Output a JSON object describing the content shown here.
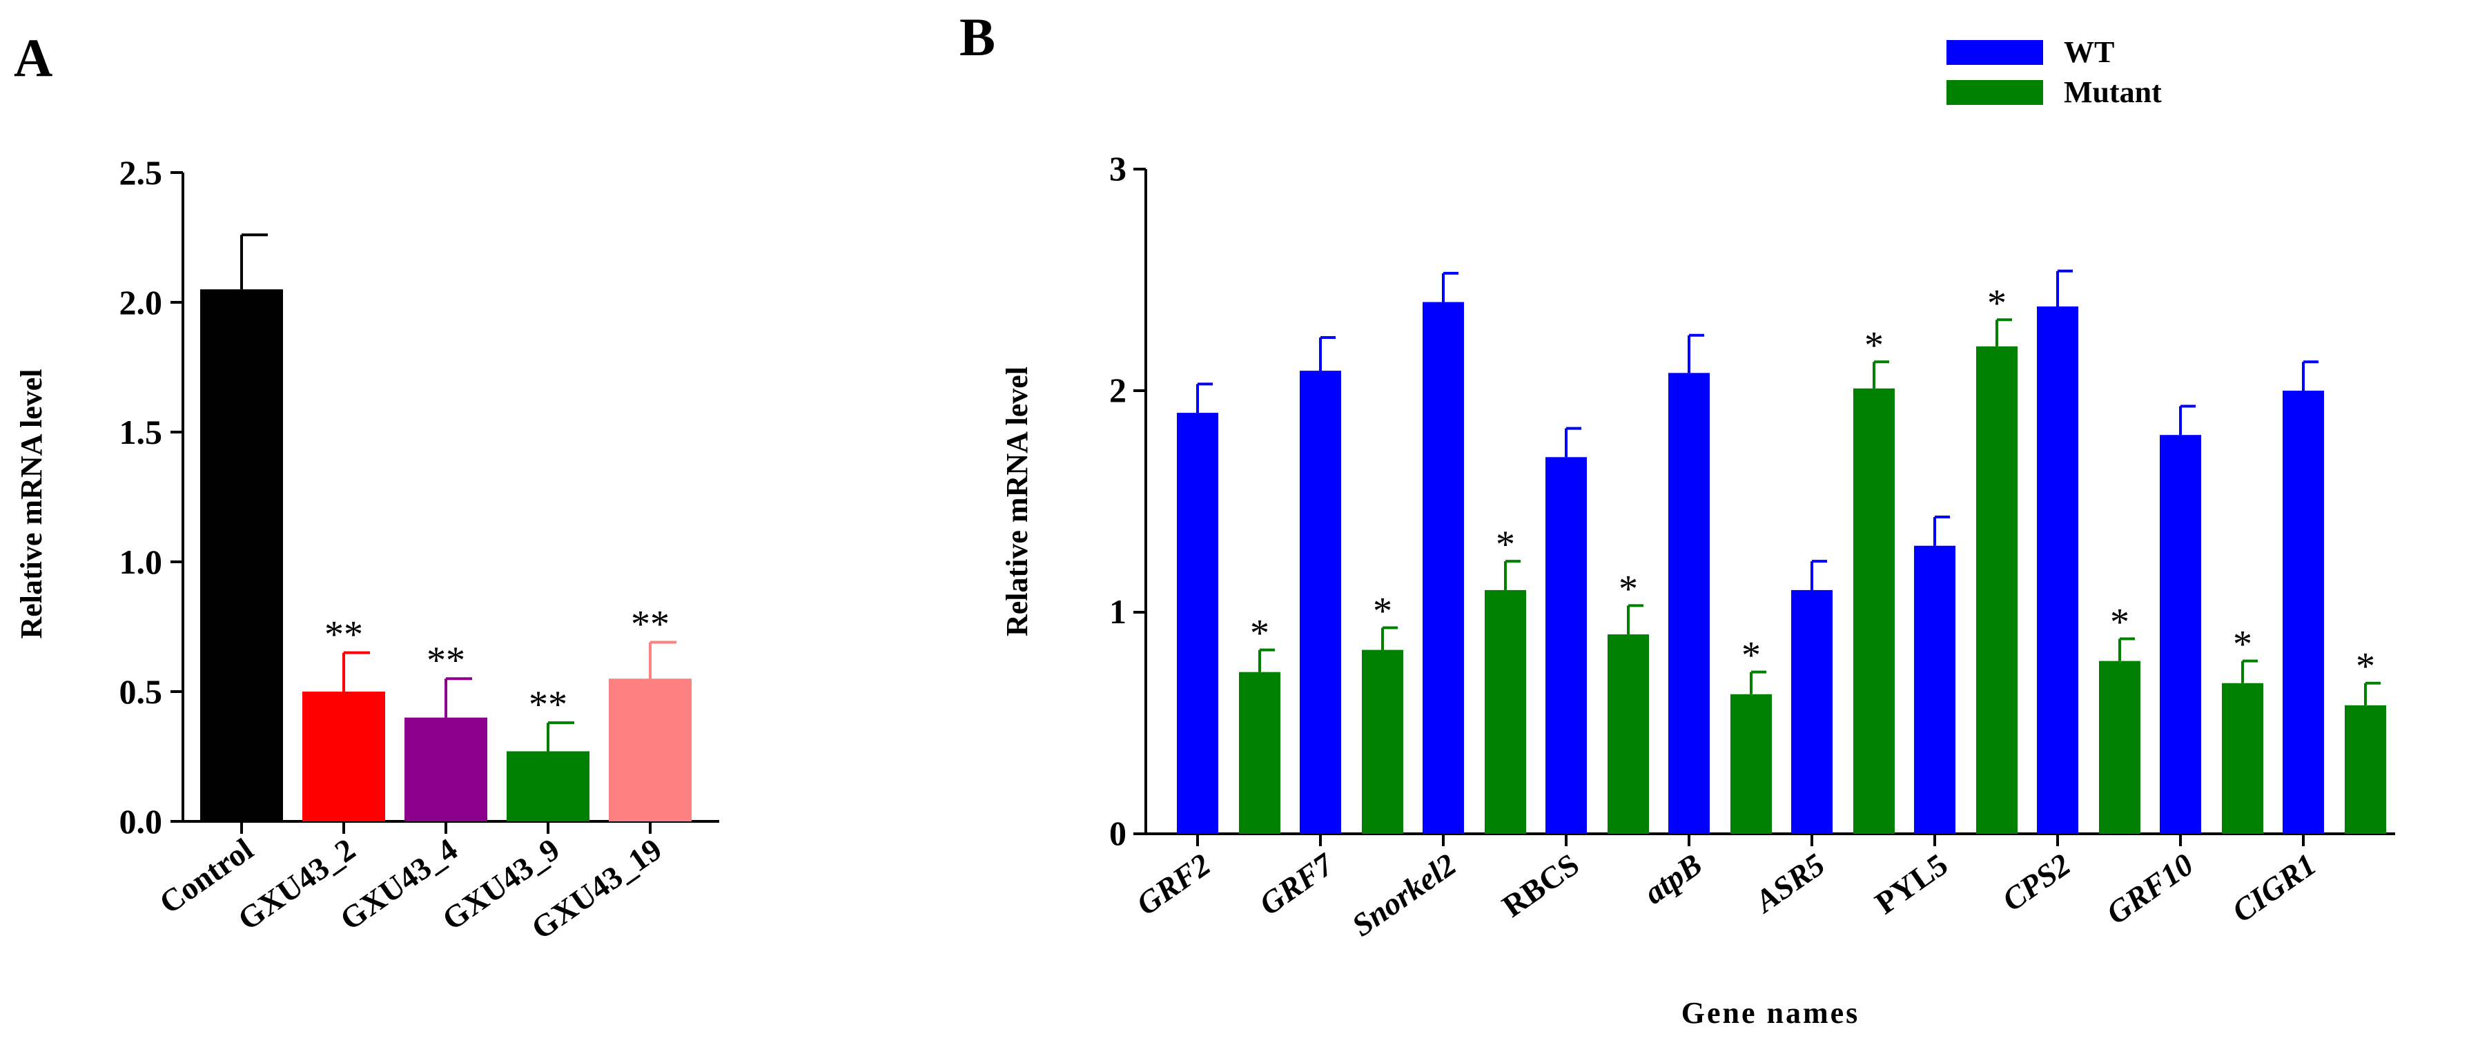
{
  "chart_data": [
    {
      "panel": "A",
      "type": "bar",
      "title": "",
      "xlabel": "",
      "ylabel": "Relative mRNA level",
      "ylim": [
        0,
        2.5
      ],
      "yticks": [
        "0.0",
        "0.5",
        "1.0",
        "1.5",
        "2.0",
        "2.5"
      ],
      "categories": [
        "Control",
        "GXU43_2",
        "GXU43_4",
        "GXU43_9",
        "GXU43_19"
      ],
      "values": [
        2.05,
        0.5,
        0.4,
        0.27,
        0.55
      ],
      "errors": [
        0.21,
        0.15,
        0.15,
        0.11,
        0.14
      ],
      "colors": [
        "#000000",
        "#ff0000",
        "#8b008b",
        "#008000",
        "#ff8080"
      ],
      "annotations": [
        "",
        "**",
        "**",
        "**",
        "**"
      ]
    },
    {
      "panel": "B",
      "type": "bar",
      "title": "",
      "xlabel": "Gene names",
      "ylabel": "Relative mRNA level",
      "ylim": [
        0,
        3
      ],
      "yticks": [
        "0",
        "1",
        "2",
        "3"
      ],
      "categories": [
        "GRF2",
        "GRF7",
        "Snorkel2",
        "RBCS",
        "atpB",
        "ASR5",
        "PYL5",
        "CPS2",
        "GRF10",
        "CIGR1"
      ],
      "category_italic": [
        true,
        true,
        true,
        false,
        true,
        true,
        false,
        true,
        true,
        true
      ],
      "legend_position": "top-right",
      "series": [
        {
          "name": "WT",
          "color": "#0000ff",
          "values": [
            1.9,
            2.09,
            2.4,
            1.7,
            2.08,
            1.1,
            1.3,
            2.38,
            1.8,
            2.0
          ],
          "errors": [
            0.13,
            0.15,
            0.13,
            0.13,
            0.17,
            0.13,
            0.13,
            0.16,
            0.13,
            0.13
          ],
          "annotations": [
            "",
            "",
            "",
            "",
            "",
            "",
            "",
            "",
            "",
            ""
          ]
        },
        {
          "name": "Mutant",
          "color": "#008000",
          "values": [
            0.73,
            0.83,
            1.1,
            0.9,
            0.63,
            2.01,
            2.2,
            0.78,
            0.68,
            0.58
          ],
          "errors": [
            0.1,
            0.1,
            0.13,
            0.13,
            0.1,
            0.12,
            0.12,
            0.1,
            0.1,
            0.1
          ],
          "annotations": [
            "*",
            "*",
            "*",
            "*",
            "*",
            "*",
            "*",
            "*",
            "*",
            "*"
          ]
        }
      ]
    }
  ]
}
